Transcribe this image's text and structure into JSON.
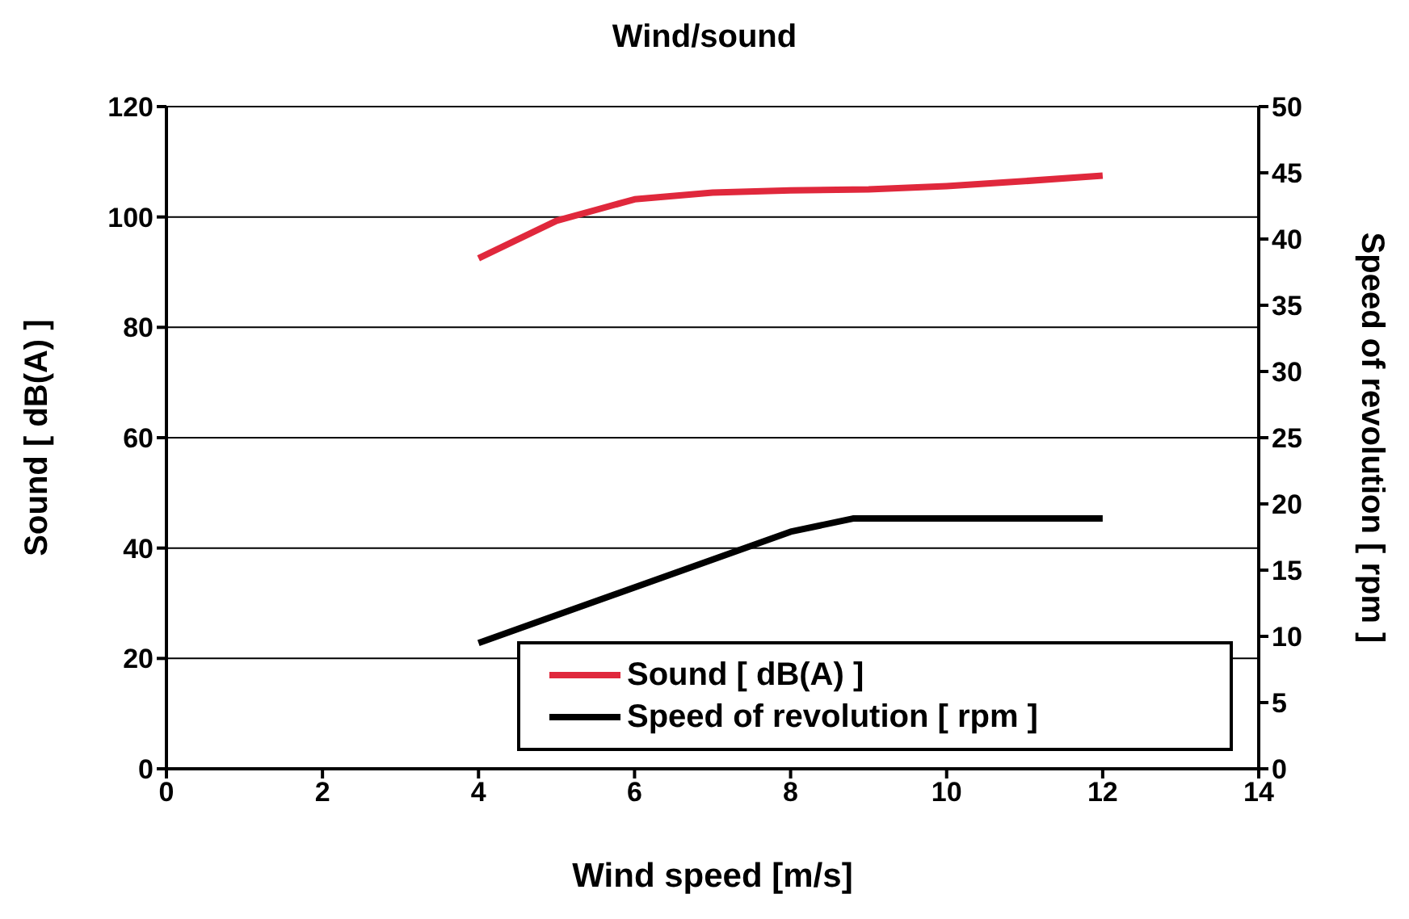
{
  "chart_data": {
    "type": "line",
    "title": "Wind/sound",
    "xlabel": "Wind speed [m/s]",
    "ylabel": "Sound [ dB(A) ]",
    "y2label": "Speed of revolution [ rpm ]",
    "series": [
      {
        "name": "Sound  [ dB(A) ]",
        "color": "#e0283c",
        "x": [
          4,
          5,
          6,
          7,
          8,
          9,
          10,
          11,
          12
        ],
        "values": [
          92.5,
          99.3,
          103.2,
          104.4,
          104.8,
          105,
          105.6,
          106.5,
          107.5
        ]
      },
      {
        "name": "Speed of revolution [ rpm ]",
        "color": "#000000",
        "axis": "y2",
        "x": [
          4,
          8,
          8.8,
          12
        ],
        "values": [
          9.5,
          17.9,
          18.9,
          18.9
        ]
      }
    ],
    "xlim": [
      0,
      14
    ],
    "xticks": [
      0,
      2,
      4,
      6,
      8,
      10,
      12,
      14
    ],
    "ylim": [
      0,
      120
    ],
    "yticks": [
      0,
      20,
      40,
      60,
      80,
      100,
      120
    ],
    "y2lim": [
      0,
      50
    ],
    "y2ticks": [
      0,
      5,
      10,
      15,
      20,
      25,
      30,
      35,
      40,
      45,
      50
    ],
    "grid": "y",
    "legend": "bottom right",
    "marker": "none",
    "line_style": "solid"
  }
}
